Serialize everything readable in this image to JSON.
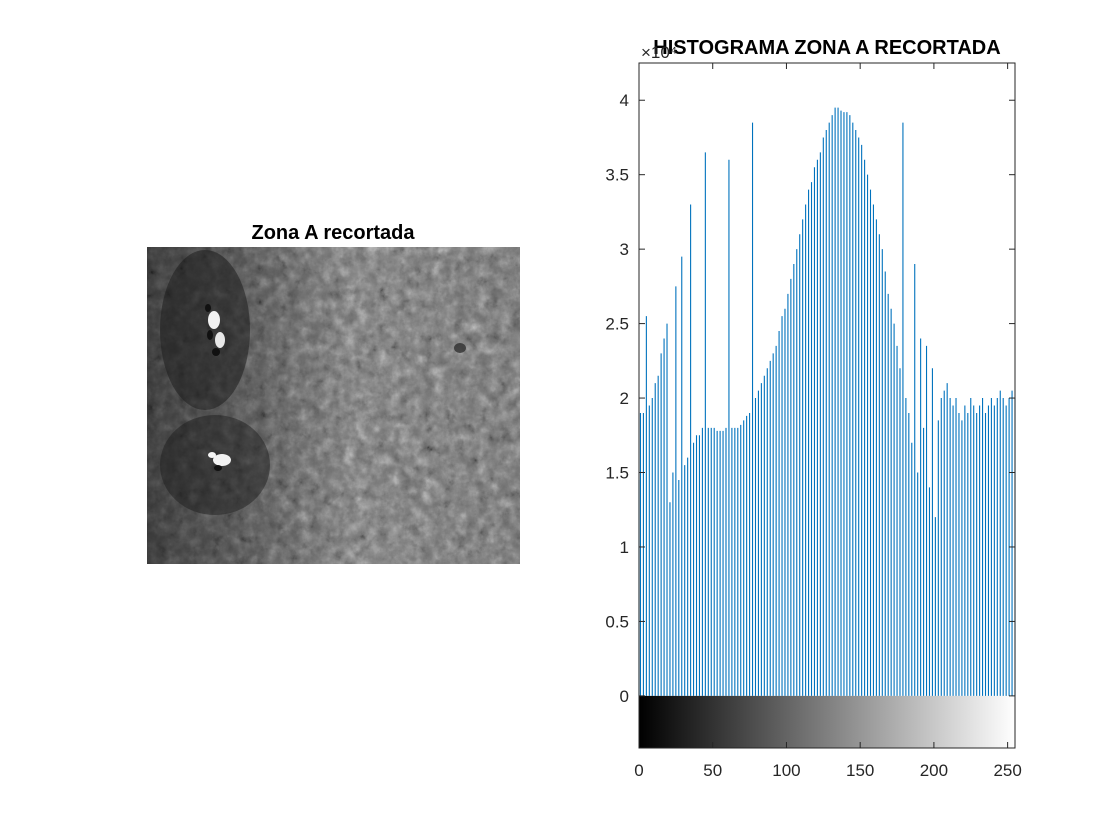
{
  "figure": {
    "left_panel": {
      "title": "Zona A recortada",
      "content": "grayscale satellite image"
    },
    "right_panel": {
      "title": "HISTOGRAMA ZONA A RECORTADA",
      "y_exponent_label": "×10⁴"
    }
  },
  "chart_data": {
    "type": "bar",
    "style": "stem histogram",
    "title": "HISTOGRAMA ZONA A RECORTADA",
    "xlabel": "",
    "ylabel": "",
    "xlim": [
      0,
      255
    ],
    "ylim": [
      -0.35,
      4.25
    ],
    "y_scale_factor": 10000,
    "x_ticks": [
      0,
      50,
      100,
      150,
      200,
      250
    ],
    "x_tick_labels": [
      "0",
      "50",
      "100",
      "150",
      "200",
      "250"
    ],
    "y_ticks": [
      0,
      0.5,
      1,
      1.5,
      2,
      2.5,
      3,
      3.5,
      4
    ],
    "y_tick_labels": [
      "0",
      "0.5",
      "1",
      "1.5",
      "2",
      "2.5",
      "3",
      "3.5",
      "4"
    ],
    "colorbar": "grayscale gradient 0-255 below zero line",
    "bar_color": "#0072BD",
    "grid": false,
    "x": [
      0,
      1,
      3,
      5,
      7,
      9,
      11,
      13,
      15,
      17,
      19,
      21,
      23,
      25,
      27,
      29,
      31,
      33,
      35,
      37,
      39,
      41,
      43,
      45,
      47,
      49,
      51,
      53,
      55,
      57,
      59,
      61,
      63,
      65,
      67,
      69,
      71,
      73,
      75,
      77,
      79,
      81,
      83,
      85,
      87,
      89,
      91,
      93,
      95,
      97,
      99,
      101,
      103,
      105,
      107,
      109,
      111,
      113,
      115,
      117,
      119,
      121,
      123,
      125,
      127,
      129,
      131,
      133,
      135,
      137,
      139,
      141,
      143,
      145,
      147,
      149,
      151,
      153,
      155,
      157,
      159,
      161,
      163,
      165,
      167,
      169,
      171,
      173,
      175,
      177,
      179,
      181,
      183,
      185,
      187,
      189,
      191,
      193,
      195,
      197,
      199,
      201,
      203,
      205,
      207,
      209,
      211,
      213,
      215,
      217,
      219,
      221,
      223,
      225,
      227,
      229,
      231,
      233,
      235,
      237,
      239,
      241,
      243,
      245,
      247,
      249,
      251,
      253,
      255
    ],
    "values": [
      1.45,
      1.9,
      1.9,
      2.55,
      1.95,
      2.0,
      2.1,
      2.15,
      2.3,
      2.4,
      2.5,
      1.3,
      1.5,
      2.75,
      1.45,
      2.95,
      1.55,
      1.6,
      3.3,
      1.7,
      1.75,
      1.75,
      1.8,
      3.65,
      1.8,
      1.8,
      1.8,
      1.78,
      1.78,
      1.78,
      1.8,
      3.6,
      1.8,
      1.8,
      1.8,
      1.82,
      1.85,
      1.88,
      1.9,
      3.85,
      2.0,
      2.05,
      2.1,
      2.15,
      2.2,
      2.25,
      2.3,
      2.35,
      2.45,
      2.55,
      2.6,
      2.7,
      2.8,
      2.9,
      3.0,
      3.1,
      3.2,
      3.3,
      3.4,
      3.45,
      3.55,
      3.6,
      3.65,
      3.75,
      3.8,
      3.85,
      3.9,
      3.95,
      3.95,
      3.93,
      3.92,
      3.92,
      3.9,
      3.85,
      3.8,
      3.75,
      3.7,
      3.6,
      3.5,
      3.4,
      3.3,
      3.2,
      3.1,
      3.0,
      2.85,
      2.7,
      2.6,
      2.5,
      2.35,
      2.2,
      3.85,
      2.0,
      1.9,
      1.7,
      2.9,
      1.5,
      2.4,
      1.8,
      2.35,
      1.4,
      2.2,
      1.2,
      1.85,
      2.0,
      2.05,
      2.1,
      2.0,
      1.95,
      2.0,
      1.9,
      1.85,
      1.95,
      1.9,
      2.0,
      1.95,
      1.9,
      1.95,
      2.0,
      1.9,
      1.95,
      2.0,
      1.95,
      2.0,
      2.05,
      2.0,
      1.95,
      2.0,
      2.05,
      2.0
    ]
  }
}
